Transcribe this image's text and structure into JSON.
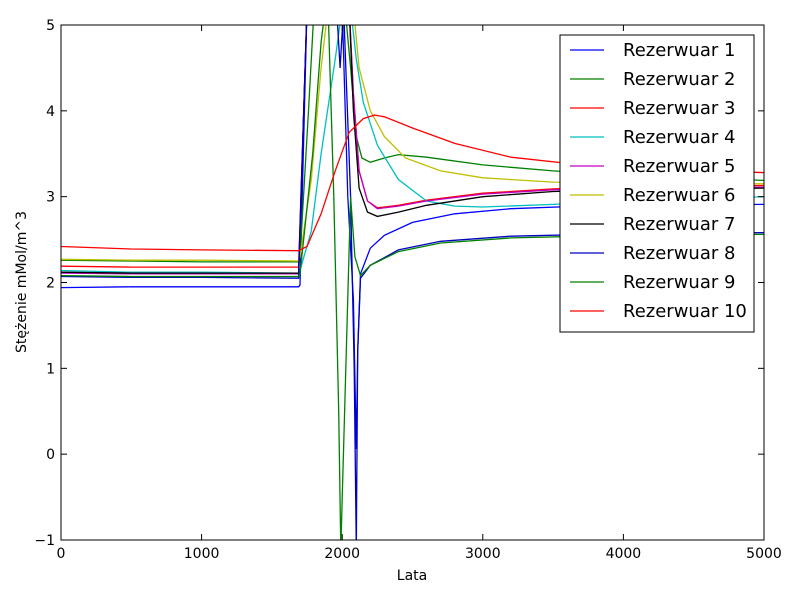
{
  "chart_data": {
    "type": "line",
    "xlabel": "Lata",
    "ylabel": "Stężenie mMol/m^3",
    "xlim": [
      0,
      5000
    ],
    "ylim": [
      -1,
      5
    ],
    "xticks": [
      0,
      1000,
      2000,
      3000,
      4000,
      5000
    ],
    "yticks": [
      -1,
      0,
      1,
      2,
      3,
      4,
      5
    ],
    "xtick_labels": [
      "0",
      "1000",
      "2000",
      "3000",
      "4000",
      "5000"
    ],
    "ytick_labels": [
      "−1",
      "0",
      "1",
      "2",
      "3",
      "4",
      "5"
    ],
    "grid": false,
    "legend_position": "top-right",
    "series": [
      {
        "name": "Rezerwuar 1",
        "color": "#0000ff",
        "points": [
          [
            0,
            1.94
          ],
          [
            500,
            1.95
          ],
          [
            1000,
            1.95
          ],
          [
            1690,
            1.95
          ],
          [
            1700,
            1.97
          ],
          [
            1750,
            5.2
          ],
          [
            2000,
            5.2
          ],
          [
            2040,
            3.0
          ],
          [
            2080,
            1.8
          ],
          [
            2100,
            0.06
          ],
          [
            2110,
            1.2
          ],
          [
            2130,
            2.1
          ],
          [
            2200,
            2.4
          ],
          [
            2300,
            2.55
          ],
          [
            2500,
            2.7
          ],
          [
            2800,
            2.8
          ],
          [
            3200,
            2.86
          ],
          [
            3700,
            2.89
          ],
          [
            4300,
            2.9
          ],
          [
            5000,
            2.91
          ]
        ]
      },
      {
        "name": "Rezerwuar 2",
        "color": "#008000",
        "points": [
          [
            0,
            2.26
          ],
          [
            500,
            2.25
          ],
          [
            1000,
            2.24
          ],
          [
            1690,
            2.24
          ],
          [
            1700,
            2.3
          ],
          [
            1760,
            4.0
          ],
          [
            1800,
            5.2
          ],
          [
            2020,
            5.2
          ],
          [
            2060,
            4.5
          ],
          [
            2100,
            3.7
          ],
          [
            2140,
            3.45
          ],
          [
            2200,
            3.4
          ],
          [
            2300,
            3.45
          ],
          [
            2400,
            3.49
          ],
          [
            2600,
            3.46
          ],
          [
            3000,
            3.37
          ],
          [
            3500,
            3.3
          ],
          [
            4000,
            3.25
          ],
          [
            5000,
            3.19
          ]
        ]
      },
      {
        "name": "Rezerwuar 3",
        "color": "#ff0000",
        "points": [
          [
            0,
            2.19
          ],
          [
            500,
            2.18
          ],
          [
            1000,
            2.18
          ],
          [
            1690,
            2.18
          ],
          [
            1750,
            5.2
          ],
          [
            2050,
            5.2
          ],
          [
            2080,
            4.2
          ],
          [
            2120,
            3.3
          ],
          [
            2180,
            2.95
          ],
          [
            2250,
            2.87
          ],
          [
            2400,
            2.9
          ],
          [
            2600,
            2.96
          ],
          [
            3000,
            3.04
          ],
          [
            3500,
            3.09
          ],
          [
            4000,
            3.12
          ],
          [
            5000,
            3.13
          ]
        ]
      },
      {
        "name": "Rezerwuar 4",
        "color": "#00bfbf",
        "points": [
          [
            0,
            2.14
          ],
          [
            500,
            2.12
          ],
          [
            1000,
            2.12
          ],
          [
            1690,
            2.11
          ],
          [
            1700,
            2.14
          ],
          [
            1780,
            2.6
          ],
          [
            1850,
            3.5
          ],
          [
            1950,
            4.6
          ],
          [
            2000,
            5.2
          ],
          [
            2060,
            5.2
          ],
          [
            2100,
            4.6
          ],
          [
            2150,
            4.1
          ],
          [
            2250,
            3.6
          ],
          [
            2400,
            3.2
          ],
          [
            2600,
            2.95
          ],
          [
            2800,
            2.89
          ],
          [
            3000,
            2.88
          ],
          [
            3500,
            2.91
          ],
          [
            4000,
            2.95
          ],
          [
            5000,
            3.0
          ]
        ]
      },
      {
        "name": "Rezerwuar 5",
        "color": "#bf00bf",
        "points": [
          [
            0,
            2.11
          ],
          [
            500,
            2.1
          ],
          [
            1000,
            2.1
          ],
          [
            1690,
            2.1
          ],
          [
            1750,
            5.2
          ],
          [
            2050,
            5.2
          ],
          [
            2080,
            4.2
          ],
          [
            2120,
            3.3
          ],
          [
            2180,
            2.95
          ],
          [
            2250,
            2.86
          ],
          [
            2400,
            2.89
          ],
          [
            2600,
            2.95
          ],
          [
            3000,
            3.03
          ],
          [
            3500,
            3.08
          ],
          [
            4000,
            3.1
          ],
          [
            5000,
            3.11
          ]
        ]
      },
      {
        "name": "Rezerwuar 6",
        "color": "#bfbf00",
        "points": [
          [
            0,
            2.27
          ],
          [
            500,
            2.26
          ],
          [
            1000,
            2.26
          ],
          [
            1690,
            2.25
          ],
          [
            1700,
            2.3
          ],
          [
            1780,
            3.2
          ],
          [
            1850,
            4.5
          ],
          [
            1900,
            5.2
          ],
          [
            2080,
            5.2
          ],
          [
            2120,
            4.5
          ],
          [
            2200,
            4.0
          ],
          [
            2300,
            3.7
          ],
          [
            2450,
            3.45
          ],
          [
            2700,
            3.3
          ],
          [
            3000,
            3.22
          ],
          [
            3500,
            3.17
          ],
          [
            4000,
            3.16
          ],
          [
            5000,
            3.15
          ]
        ]
      },
      {
        "name": "Rezerwuar 7",
        "color": "#000000",
        "points": [
          [
            0,
            2.12
          ],
          [
            500,
            2.11
          ],
          [
            1000,
            2.11
          ],
          [
            1690,
            2.11
          ],
          [
            1750,
            5.2
          ],
          [
            2050,
            5.2
          ],
          [
            2080,
            4.0
          ],
          [
            2120,
            3.1
          ],
          [
            2180,
            2.82
          ],
          [
            2250,
            2.77
          ],
          [
            2400,
            2.82
          ],
          [
            2600,
            2.9
          ],
          [
            3000,
            3.0
          ],
          [
            3500,
            3.06
          ],
          [
            4000,
            3.08
          ],
          [
            5000,
            3.1
          ]
        ]
      },
      {
        "name": "Rezerwuar 8",
        "color": "#0000bf",
        "points": [
          [
            0,
            2.07
          ],
          [
            500,
            2.06
          ],
          [
            1000,
            2.06
          ],
          [
            1690,
            2.05
          ],
          [
            1750,
            5.2
          ],
          [
            1960,
            5.2
          ],
          [
            1985,
            4.5
          ],
          [
            2010,
            5.2
          ],
          [
            2060,
            3.0
          ],
          [
            2085,
            1.0
          ],
          [
            2100,
            -1.1
          ],
          [
            2110,
            1.2
          ],
          [
            2130,
            2.05
          ],
          [
            2200,
            2.2
          ],
          [
            2400,
            2.38
          ],
          [
            2700,
            2.48
          ],
          [
            3200,
            2.54
          ],
          [
            4000,
            2.57
          ],
          [
            5000,
            2.58
          ]
        ]
      },
      {
        "name": "Rezerwuar 9",
        "color": "#008000",
        "points": [
          [
            0,
            2.08
          ],
          [
            500,
            2.07
          ],
          [
            1000,
            2.07
          ],
          [
            1690,
            2.07
          ],
          [
            1700,
            2.1
          ],
          [
            1790,
            3.5
          ],
          [
            1850,
            4.8
          ],
          [
            1880,
            5.2
          ],
          [
            1900,
            5.2
          ],
          [
            1940,
            3.0
          ],
          [
            1975,
            0.5
          ],
          [
            1990,
            -1.1
          ],
          [
            2060,
            3.0
          ],
          [
            2090,
            2.3
          ],
          [
            2130,
            2.08
          ],
          [
            2200,
            2.2
          ],
          [
            2400,
            2.36
          ],
          [
            2700,
            2.46
          ],
          [
            3200,
            2.52
          ],
          [
            4000,
            2.55
          ],
          [
            5000,
            2.56
          ]
        ]
      },
      {
        "name": "Rezerwuar 10",
        "color": "#ff0000",
        "points": [
          [
            0,
            2.42
          ],
          [
            500,
            2.39
          ],
          [
            1000,
            2.38
          ],
          [
            1690,
            2.37
          ],
          [
            1750,
            2.42
          ],
          [
            1850,
            2.8
          ],
          [
            1950,
            3.3
          ],
          [
            2050,
            3.75
          ],
          [
            2150,
            3.91
          ],
          [
            2230,
            3.95
          ],
          [
            2300,
            3.93
          ],
          [
            2500,
            3.8
          ],
          [
            2800,
            3.62
          ],
          [
            3200,
            3.46
          ],
          [
            3700,
            3.37
          ],
          [
            4200,
            3.32
          ],
          [
            5000,
            3.28
          ]
        ]
      }
    ]
  }
}
